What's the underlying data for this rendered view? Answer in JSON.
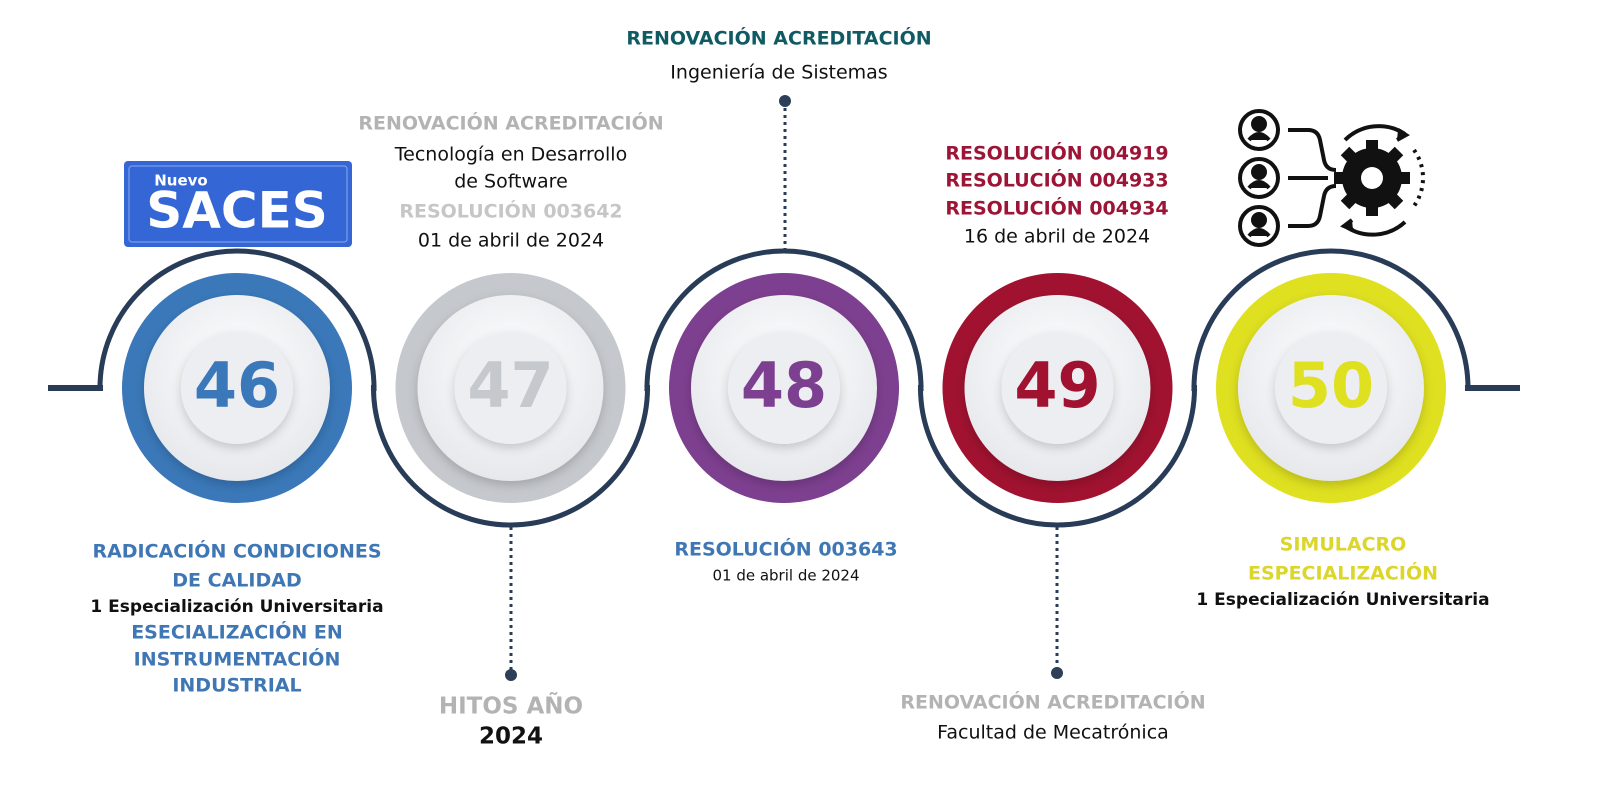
{
  "logo": {
    "prefix": "Nuevo",
    "name": "SACES"
  },
  "milestones": [
    {
      "number": "46",
      "color": "#3a78b9",
      "below": {
        "title": [
          "RADICACIÓN CONDICIONES",
          "DE CALIDAD"
        ],
        "detail": "1 Especialización Universitaria",
        "program": [
          "ESECIALIZACIÓN EN",
          "INSTRUMENTACIÓN",
          "INDUSTRIAL"
        ]
      }
    },
    {
      "number": "47",
      "color": "#c5c8cd",
      "above": {
        "title": "RENOVACIÓN ACREDITACIÓN",
        "program": [
          "Tecnología en Desarrollo",
          "de Software"
        ],
        "resolution": "RESOLUCIÓN 003642",
        "date": "01 de abril de 2024"
      }
    },
    {
      "number": "48",
      "color": "#7d3f8f",
      "above": {
        "title": "RENOVACIÓN ACREDITACIÓN",
        "program": "Ingeniería de Sistemas"
      },
      "below": {
        "resolution": "RESOLUCIÓN 003643",
        "date": "01 de abril de 2024"
      }
    },
    {
      "number": "49",
      "color": "#a01230",
      "above": {
        "resolutions": [
          "RESOLUCIÓN 004919",
          "RESOLUCIÓN 004933",
          "RESOLUCIÓN 004934"
        ],
        "date": "16 de abril de 2024"
      },
      "below": {
        "title": "RENOVACIÓN ACREDITACIÓN",
        "program": "Facultad de Mecatrónica"
      }
    },
    {
      "number": "50",
      "color": "#dfe020",
      "below": {
        "title": [
          "SIMULACRO",
          "ESPECIALIZACIÓN"
        ],
        "detail": "1 Especialización Universitaria"
      }
    }
  ],
  "year": {
    "label": "HITOS AÑO",
    "value": "2024"
  }
}
